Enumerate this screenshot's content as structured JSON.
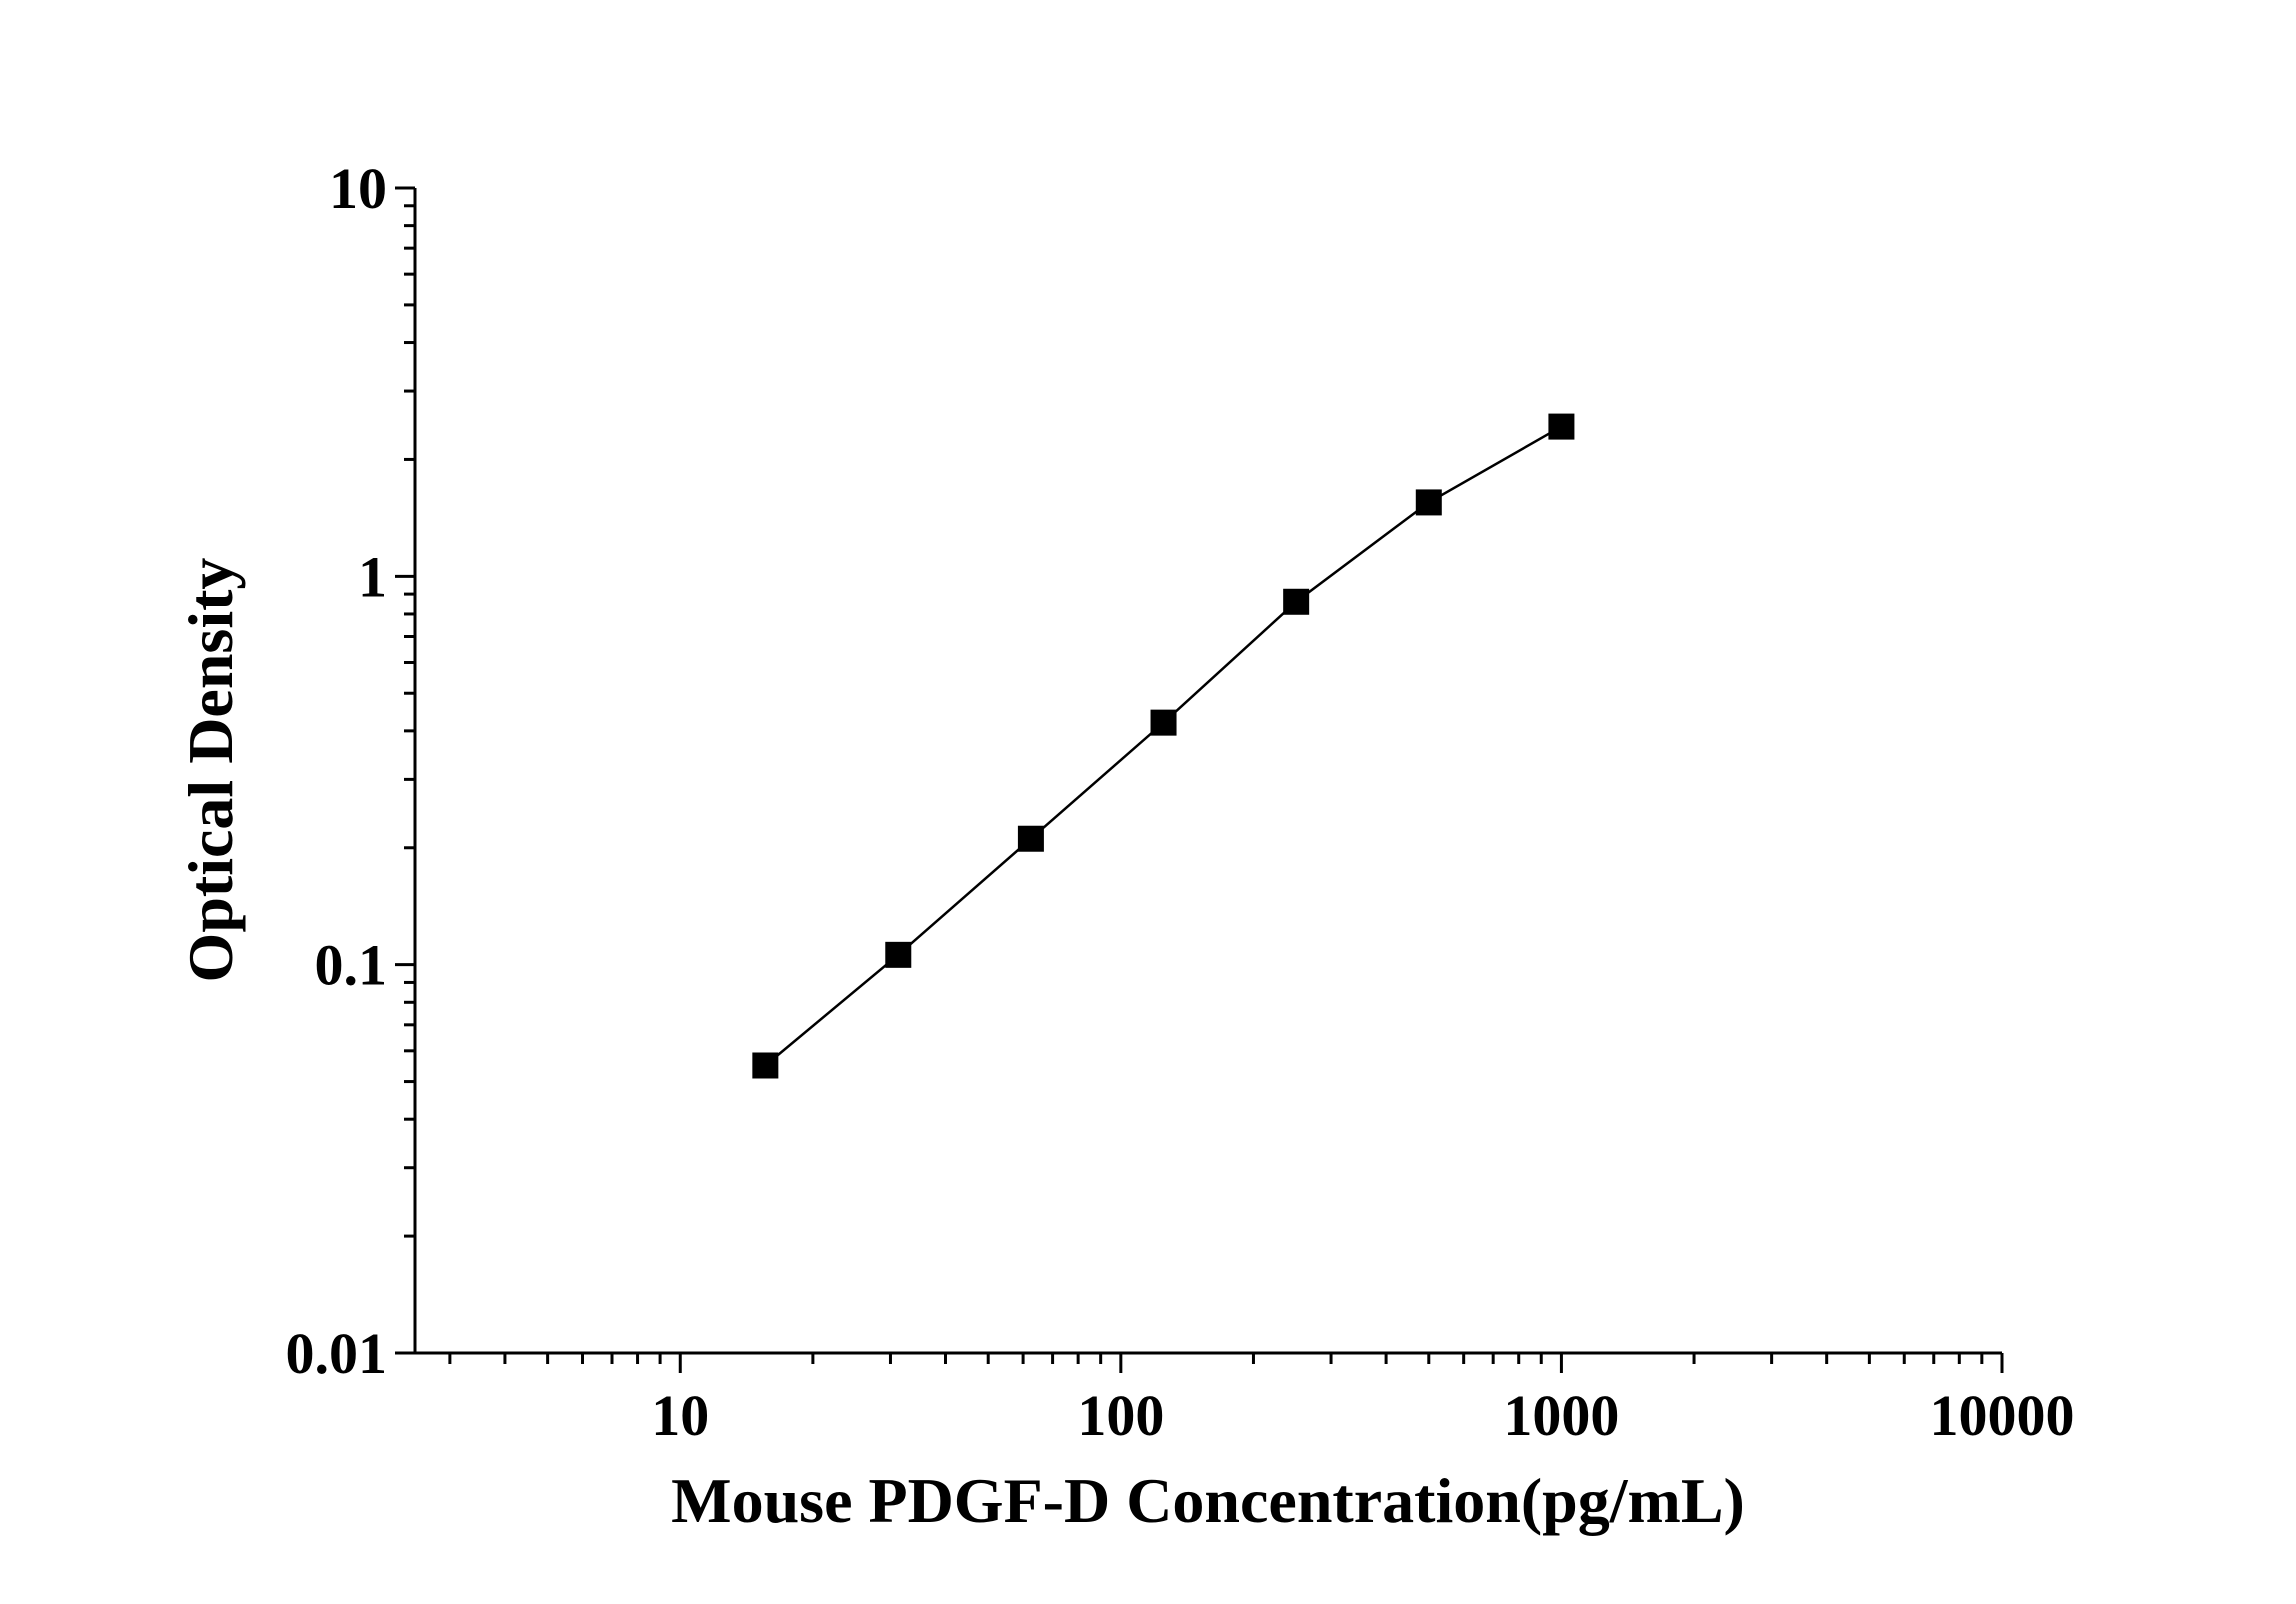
{
  "chart_data": {
    "type": "line",
    "title": "",
    "xlabel": "Mouse PDGF-D Concentration(pg/mL)",
    "ylabel": "Optical Density",
    "x_scale": "log",
    "y_scale": "log",
    "xlim": [
      2.5,
      10000
    ],
    "ylim": [
      0.01,
      10
    ],
    "x_ticks": [
      10,
      100,
      1000,
      10000
    ],
    "x_tick_labels": [
      "10",
      "100",
      "1000",
      "10000"
    ],
    "y_ticks": [
      0.01,
      0.1,
      1,
      10
    ],
    "y_tick_labels": [
      "0.01",
      "0.1",
      "1",
      "10"
    ],
    "grid": false,
    "legend": "none",
    "marker": "square",
    "color": "#000000",
    "series": [
      {
        "x": [
          15.6,
          31.25,
          62.5,
          125,
          250,
          500,
          1000
        ],
        "y": [
          0.055,
          0.106,
          0.211,
          0.42,
          0.86,
          1.55,
          2.43
        ]
      }
    ]
  }
}
